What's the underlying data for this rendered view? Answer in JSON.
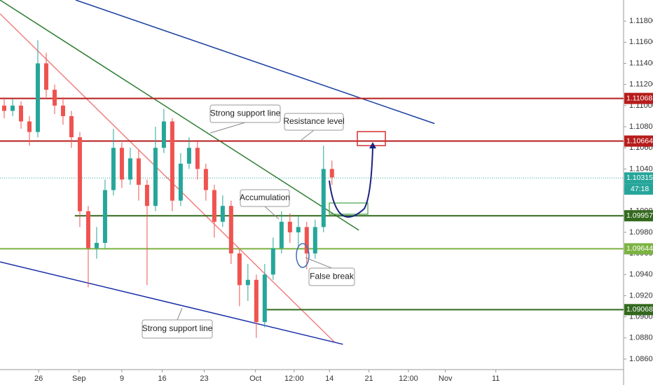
{
  "chart_data": {
    "type": "candlestick",
    "up_color": "#26a69a",
    "down_color": "#ef5350",
    "x": [
      0,
      1,
      2,
      3,
      4,
      5,
      6,
      7,
      8,
      9,
      10,
      11,
      12,
      13,
      14,
      15,
      16,
      17,
      18,
      19,
      20,
      21,
      22,
      23,
      24,
      25,
      26,
      27,
      28,
      29,
      30,
      31,
      32,
      33,
      34,
      35,
      36,
      37,
      38,
      39
    ],
    "open": [
      1.11,
      1.1095,
      1.11,
      1.1085,
      1.1075,
      1.114,
      1.1115,
      1.11,
      1.109,
      1.107,
      1.1,
      1.0965,
      1.097,
      1.102,
      1.106,
      1.103,
      1.105,
      1.1025,
      1.1005,
      1.106,
      1.1085,
      1.101,
      1.1045,
      1.106,
      1.104,
      1.102,
      1.099,
      1.1005,
      1.096,
      1.093,
      1.0935,
      1.0895,
      1.094,
      1.0965,
      1.099,
      1.098,
      1.0985,
      1.096,
      1.0985,
      1.104
    ],
    "high": [
      1.1108,
      1.1106,
      1.1104,
      1.109,
      1.1162,
      1.115,
      1.112,
      1.1108,
      1.1095,
      1.1075,
      1.1005,
      1.0985,
      1.103,
      1.1078,
      1.1065,
      1.106,
      1.1058,
      1.103,
      1.108,
      1.1097,
      1.1088,
      1.1055,
      1.107,
      1.1066,
      1.1045,
      1.1025,
      1.1015,
      1.101,
      1.0965,
      1.095,
      1.094,
      1.095,
      1.0975,
      1.1,
      1.0998,
      1.0995,
      1.099,
      1.0992,
      1.1062,
      1.1048
    ],
    "low": [
      1.1088,
      1.109,
      1.1078,
      1.1062,
      1.107,
      1.1108,
      1.1092,
      1.1082,
      1.106,
      1.0985,
      1.0928,
      1.0955,
      1.0965,
      1.1015,
      1.1022,
      1.1025,
      1.101,
      1.093,
      1.1,
      1.1055,
      1.1,
      1.1005,
      1.104,
      1.103,
      1.101,
      1.0975,
      1.0985,
      1.095,
      1.091,
      1.0915,
      1.088,
      1.089,
      1.0935,
      1.096,
      1.097,
      1.0965,
      1.0945,
      1.0955,
      1.098,
      1.1025
    ],
    "close": [
      1.1095,
      1.11,
      1.1085,
      1.1075,
      1.114,
      1.1115,
      1.11,
      1.109,
      1.107,
      1.1,
      1.0965,
      1.097,
      1.102,
      1.106,
      1.103,
      1.105,
      1.1025,
      1.1005,
      1.106,
      1.1085,
      1.101,
      1.1045,
      1.106,
      1.104,
      1.102,
      1.099,
      1.1005,
      1.096,
      1.093,
      1.0935,
      1.0895,
      1.094,
      1.0965,
      1.099,
      1.098,
      1.0985,
      1.096,
      1.0985,
      1.104,
      1.1032
    ],
    "xlim": [
      -0.5,
      73.7
    ],
    "xticks": [
      {
        "value": 4.1,
        "label": "26"
      },
      {
        "value": 8.9,
        "label": "Sep"
      },
      {
        "value": 14.0,
        "label": "9"
      },
      {
        "value": 18.8,
        "label": "16"
      },
      {
        "value": 23.8,
        "label": "23"
      },
      {
        "value": 29.9,
        "label": "Oct"
      },
      {
        "value": 34.5,
        "label": "12:00"
      },
      {
        "value": 38.7,
        "label": "14"
      },
      {
        "value": 43.4,
        "label": "21"
      },
      {
        "value": 48.1,
        "label": "12:00"
      },
      {
        "value": 52.5,
        "label": "Nov"
      },
      {
        "value": 58.5,
        "label": "11"
      }
    ],
    "ylim": [
      1.085,
      1.12
    ],
    "yticks": [
      {
        "value": 1.086,
        "label": "1.08600"
      },
      {
        "value": 1.088,
        "label": "1.08800"
      },
      {
        "value": 1.09,
        "label": "1.09000"
      },
      {
        "value": 1.092,
        "label": "1.09200"
      },
      {
        "value": 1.094,
        "label": "1.09400"
      },
      {
        "value": 1.096,
        "label": "1.09600"
      },
      {
        "value": 1.098,
        "label": "1.09800"
      },
      {
        "value": 1.1,
        "label": "1.10000"
      },
      {
        "value": 1.102,
        "label": "1.10200"
      },
      {
        "value": 1.104,
        "label": "1.10400"
      },
      {
        "value": 1.106,
        "label": "1.10600"
      },
      {
        "value": 1.108,
        "label": "1.10800"
      },
      {
        "value": 1.11,
        "label": "1.11000"
      },
      {
        "value": 1.112,
        "label": "1.11200"
      },
      {
        "value": 1.114,
        "label": "1.11400"
      },
      {
        "value": 1.116,
        "label": "1.11600"
      },
      {
        "value": 1.118,
        "label": "1.11800"
      }
    ],
    "levels": [
      {
        "value": 1.11068,
        "color": "#b71c1c",
        "from": -0.5,
        "style": "thick"
      },
      {
        "value": 1.10664,
        "color": "#b71c1c",
        "from": -0.5,
        "style": "thick"
      },
      {
        "value": 1.10315,
        "color": "#26a69a",
        "from": -0.5,
        "style": "thin"
      },
      {
        "value": 1.09957,
        "color": "#33691e",
        "from": 8.4,
        "style": "thick"
      },
      {
        "value": 1.09644,
        "color": "#7cb342",
        "from": -0.5,
        "style": "thick"
      },
      {
        "value": 1.09068,
        "color": "#33691e",
        "from": 30.8,
        "style": "thick"
      }
    ],
    "countdown": "47:18",
    "trendlines": [
      {
        "color": "#1a3fa0",
        "x": [
          8.5,
          51.2
        ],
        "y": [
          1.12,
          1.1083
        ]
      },
      {
        "color": "#f08080",
        "x": [
          -0.5,
          39.3
        ],
        "y": [
          1.1187,
          1.0876
        ]
      },
      {
        "color": "#2e7d32",
        "x": [
          -0.5,
          42.2
        ],
        "y": [
          1.12,
          1.0982
        ]
      },
      {
        "color": "#1a2fa8",
        "x": [
          -0.5,
          40.3
        ],
        "y": [
          1.0952,
          1.0874
        ]
      }
    ],
    "annotations": [
      "Strong support line",
      "Resistance level",
      "Accumulation",
      "False break",
      "Strong support line"
    ]
  }
}
